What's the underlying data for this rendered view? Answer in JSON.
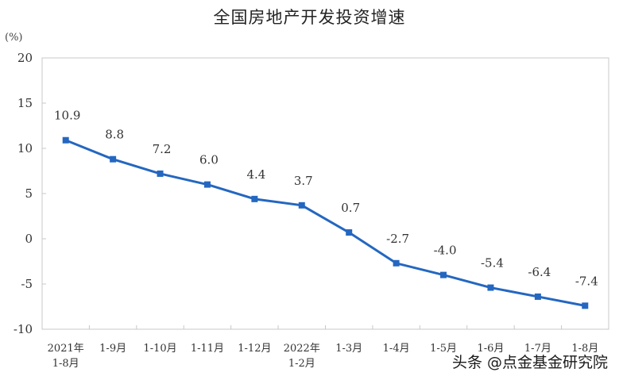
{
  "chart_data": {
    "type": "line",
    "title": "全国房地产开发投资增速",
    "ylabel": "(%)",
    "xlabel": "",
    "ylim": [
      -10,
      20
    ],
    "yticks": [
      20,
      15,
      10,
      5,
      0,
      -5,
      -10
    ],
    "categories": [
      "2021年 1-8月",
      "1-9月",
      "1-10月",
      "1-11月",
      "1-12月",
      "2022年 1-2月",
      "1-3月",
      "1-4月",
      "1-5月",
      "1-6月",
      "1-7月",
      "1-8月"
    ],
    "category_lines": [
      [
        "2021年",
        "1-8月"
      ],
      [
        "1-9月"
      ],
      [
        "1-10月"
      ],
      [
        "1-11月"
      ],
      [
        "1-12月"
      ],
      [
        "2022年",
        "1-2月"
      ],
      [
        "1-3月"
      ],
      [
        "1-4月"
      ],
      [
        "1-5月"
      ],
      [
        "1-6月"
      ],
      [
        "1-7月"
      ],
      [
        "1-8月"
      ]
    ],
    "series": [
      {
        "name": "全国房地产开发投资增速",
        "color": "#2467c0",
        "values": [
          10.9,
          8.8,
          7.2,
          6.0,
          4.4,
          3.7,
          0.7,
          -2.7,
          -4.0,
          -5.4,
          -6.4,
          -7.4
        ],
        "labels": [
          "10.9",
          "8.8",
          "7.2",
          "6.0",
          "4.4",
          "3.7",
          "0.7",
          "-2.7",
          "-4.0",
          "-5.4",
          "-6.4",
          "-7.4"
        ]
      }
    ],
    "grid": false,
    "legend": "none"
  },
  "watermark": "头条 @点金基金研究院"
}
